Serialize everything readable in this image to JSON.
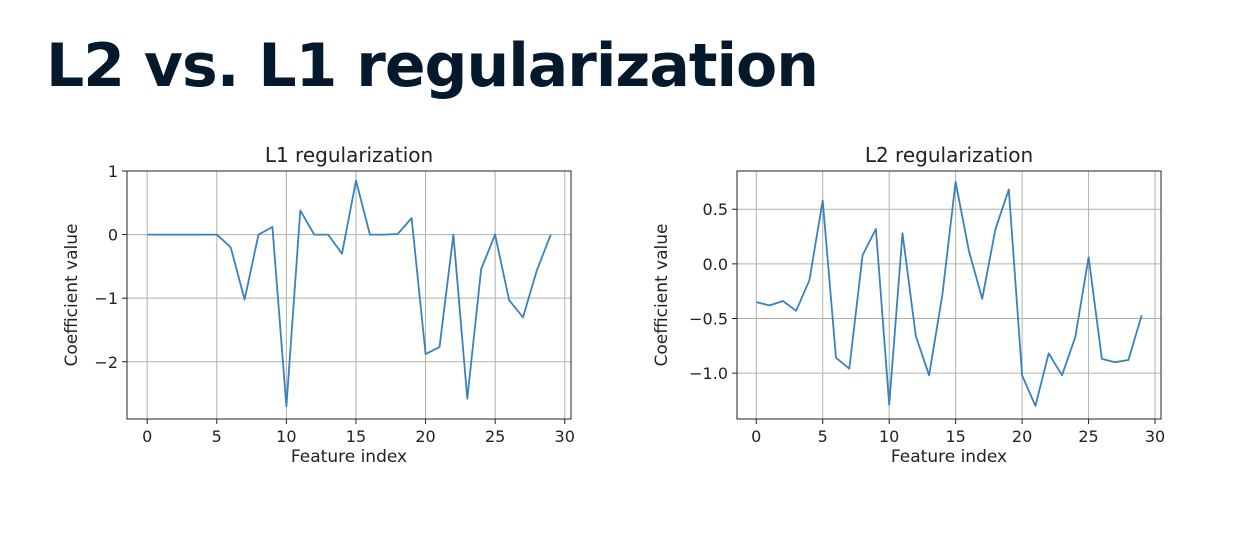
{
  "page": {
    "title": "L2 vs. L1 regularization",
    "line_color": "#3a82bd",
    "title_color": "#05192d"
  },
  "chart_data": [
    {
      "type": "line",
      "title": "L1 regularization",
      "xlabel": "Feature index",
      "ylabel": "Coefficient value",
      "xlim": [
        -1.45,
        30.45
      ],
      "ylim": [
        -2.9,
        1.0
      ],
      "xticks": [
        0,
        5,
        10,
        15,
        20,
        25,
        30
      ],
      "xtick_labels": [
        "0",
        "5",
        "10",
        "15",
        "20",
        "25",
        "30"
      ],
      "yticks": [
        1,
        0,
        -1,
        -2
      ],
      "ytick_labels": [
        "1",
        "0",
        "−1",
        "−2"
      ],
      "grid": true,
      "series": [
        {
          "x": [
            0,
            1,
            2,
            3,
            4,
            5,
            6,
            7,
            8,
            9,
            10,
            11,
            12,
            13,
            14,
            15,
            16,
            17,
            18,
            19,
            20,
            21,
            22,
            23,
            24,
            25,
            26,
            27,
            28,
            29
          ],
          "y": [
            0,
            0,
            0,
            0,
            0,
            0,
            -0.2,
            -1.02,
            0,
            0.12,
            -2.7,
            0.38,
            0,
            0,
            -0.3,
            0.85,
            0,
            0,
            0.01,
            0.26,
            -1.88,
            -1.77,
            0,
            -2.58,
            -0.54,
            0,
            -1.03,
            -1.3,
            -0.56,
            0
          ]
        }
      ]
    },
    {
      "type": "line",
      "title": "L2 regularization",
      "xlabel": "Feature index",
      "ylabel": "Coefficient value",
      "xlim": [
        -1.45,
        30.45
      ],
      "ylim": [
        -1.42,
        0.85
      ],
      "xticks": [
        0,
        5,
        10,
        15,
        20,
        25,
        30
      ],
      "xtick_labels": [
        "0",
        "5",
        "10",
        "15",
        "20",
        "25",
        "30"
      ],
      "yticks": [
        0.5,
        0,
        -0.5,
        -1.0
      ],
      "ytick_labels": [
        "0.5",
        "0.0",
        "−0.5",
        "−1.0"
      ],
      "grid": true,
      "series": [
        {
          "x": [
            0,
            1,
            2,
            3,
            4,
            5,
            6,
            7,
            8,
            9,
            10,
            11,
            12,
            13,
            14,
            15,
            16,
            17,
            18,
            19,
            20,
            21,
            22,
            23,
            24,
            25,
            26,
            27,
            28,
            29
          ],
          "y": [
            -0.35,
            -0.38,
            -0.34,
            -0.43,
            -0.15,
            0.58,
            -0.86,
            -0.96,
            0.08,
            0.32,
            -1.29,
            0.28,
            -0.66,
            -1.02,
            -0.28,
            0.75,
            0.12,
            -0.32,
            0.32,
            0.68,
            -1.02,
            -1.3,
            -0.82,
            -1.02,
            -0.67,
            0.06,
            -0.87,
            -0.9,
            -0.88,
            -0.47
          ]
        }
      ]
    }
  ]
}
